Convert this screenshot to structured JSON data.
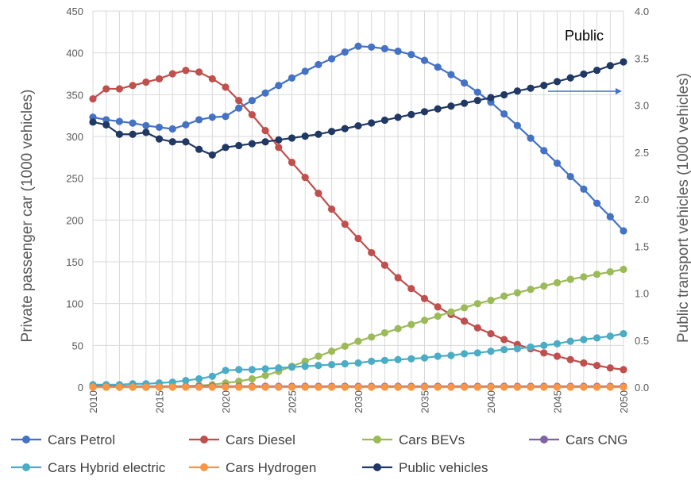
{
  "chart_data": {
    "type": "line",
    "annotation": "Public",
    "ylabel": "Private passenger car (1000 vehicles)",
    "y2label": "Public transport vehicles (1000 vehicles)",
    "xlim": [
      2010,
      2050
    ],
    "ylim": [
      0,
      450
    ],
    "y2lim": [
      0,
      4.0
    ],
    "grid": true,
    "legend_position": "bottom",
    "x_ticks": [
      "2010",
      "2015",
      "2020",
      "2025",
      "2030",
      "2035",
      "2040",
      "2045",
      "2050"
    ],
    "y_ticks": [
      "0",
      "50",
      "100",
      "150",
      "200",
      "250",
      "300",
      "350",
      "400",
      "450"
    ],
    "y2_ticks": [
      "0.0",
      "0.5",
      "1.0",
      "1.5",
      "2.0",
      "2.5",
      "3.0",
      "3.5",
      "4.0"
    ],
    "x": [
      2010,
      2011,
      2012,
      2013,
      2014,
      2015,
      2016,
      2017,
      2018,
      2019,
      2020,
      2021,
      2022,
      2023,
      2024,
      2025,
      2026,
      2027,
      2028,
      2029,
      2030,
      2031,
      2032,
      2033,
      2034,
      2035,
      2036,
      2037,
      2038,
      2039,
      2040,
      2041,
      2042,
      2043,
      2044,
      2045,
      2046,
      2047,
      2048,
      2049,
      2050
    ],
    "series": [
      {
        "name": "Cars Petrol",
        "axis": "left",
        "color": "#4472C4",
        "values": [
          323,
          320,
          318,
          316,
          313,
          311,
          309,
          314,
          320,
          323,
          324,
          334,
          343,
          352,
          361,
          370,
          378,
          386,
          393,
          401,
          408,
          407,
          405,
          402,
          398,
          391,
          383,
          374,
          364,
          353,
          341,
          327,
          313,
          298,
          283,
          268,
          252,
          237,
          220,
          204,
          187
        ]
      },
      {
        "name": "Cars Diesel",
        "axis": "left",
        "color": "#C0504D",
        "values": [
          345,
          357,
          357,
          361,
          365,
          369,
          375,
          379,
          377,
          369,
          359,
          343,
          326,
          307,
          287,
          269,
          251,
          232,
          213,
          195,
          178,
          161,
          146,
          131,
          118,
          106,
          96,
          87,
          79,
          71,
          64,
          57,
          51,
          46,
          41,
          37,
          33,
          29,
          26,
          23,
          21
        ]
      },
      {
        "name": "Cars BEVs",
        "axis": "left",
        "color": "#9BBB59",
        "values": [
          0,
          0,
          0,
          0,
          0,
          0,
          1,
          1,
          2,
          3,
          5,
          7,
          10,
          14,
          19,
          25,
          31,
          37,
          43,
          49,
          55,
          60,
          65,
          70,
          75,
          80,
          85,
          90,
          95,
          100,
          104,
          109,
          113,
          117,
          121,
          125,
          129,
          132,
          135,
          138,
          141
        ]
      },
      {
        "name": "Cars CNG",
        "axis": "left",
        "color": "#8064A2",
        "values": [
          1,
          1,
          1,
          1,
          1,
          1,
          1,
          1,
          1,
          1,
          1,
          1,
          1,
          1,
          1,
          1,
          1,
          1,
          1,
          1,
          1,
          1,
          1,
          1,
          1,
          1,
          1,
          1,
          1,
          1,
          1,
          1,
          1,
          1,
          1,
          1,
          1,
          1,
          1,
          1,
          1
        ]
      },
      {
        "name": "Cars Hybrid electric",
        "axis": "left",
        "color": "#4BACC6",
        "values": [
          3,
          3,
          3,
          4,
          4,
          5,
          6,
          8,
          10,
          13,
          20,
          21,
          21,
          22,
          23,
          24,
          25,
          26,
          27,
          28,
          29,
          31,
          32,
          33,
          34,
          35,
          37,
          38,
          40,
          41,
          43,
          45,
          46,
          48,
          50,
          52,
          55,
          57,
          59,
          61,
          64
        ]
      },
      {
        "name": "Cars Hydrogen",
        "axis": "left",
        "color": "#F79646",
        "values": [
          0,
          0,
          0,
          0,
          0,
          0,
          0,
          0,
          0,
          0,
          0,
          0,
          0,
          0,
          0,
          0,
          0,
          0,
          0,
          0,
          0,
          0,
          0,
          0,
          0,
          0,
          0,
          0,
          0,
          0,
          0,
          0,
          0,
          0,
          0,
          0,
          0,
          0,
          0,
          0,
          0
        ]
      },
      {
        "name": "Public vehicles",
        "axis": "right",
        "color": "#1F3864",
        "values": [
          2.82,
          2.79,
          2.69,
          2.69,
          2.71,
          2.64,
          2.61,
          2.61,
          2.53,
          2.47,
          2.55,
          2.57,
          2.59,
          2.61,
          2.63,
          2.65,
          2.67,
          2.69,
          2.72,
          2.75,
          2.78,
          2.81,
          2.84,
          2.87,
          2.9,
          2.93,
          2.96,
          2.99,
          3.02,
          3.05,
          3.08,
          3.11,
          3.15,
          3.18,
          3.21,
          3.25,
          3.29,
          3.33,
          3.37,
          3.42,
          3.46
        ]
      }
    ]
  }
}
